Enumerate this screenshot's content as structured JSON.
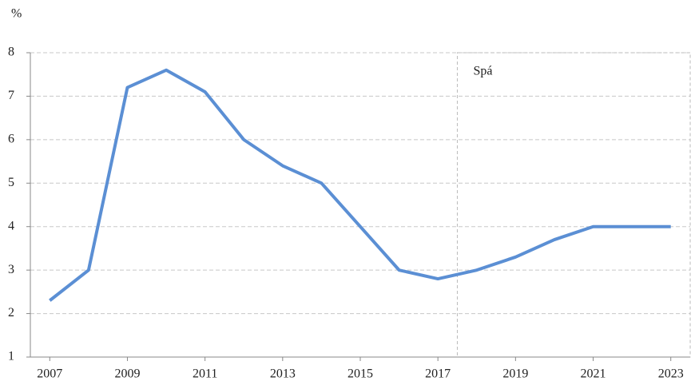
{
  "chart_data": {
    "type": "line",
    "y_label": "%",
    "x": [
      2007,
      2008,
      2009,
      2010,
      2011,
      2012,
      2013,
      2014,
      2015,
      2016,
      2017,
      2018,
      2019,
      2020,
      2021,
      2022,
      2023
    ],
    "series": [
      {
        "name": null,
        "color": "#5b8fd4",
        "values": [
          2.3,
          3.0,
          7.2,
          7.6,
          7.1,
          6.0,
          5.4,
          5.0,
          4.0,
          3.0,
          2.8,
          3.0,
          3.3,
          3.7,
          4.0,
          4.0,
          4.0
        ]
      }
    ],
    "xlim": [
      2006.5,
      2023.5
    ],
    "xticks": [
      2007,
      2009,
      2011,
      2013,
      2015,
      2017,
      2019,
      2021,
      2023
    ],
    "ylim": [
      1,
      8
    ],
    "yticks": [
      1,
      2,
      3,
      4,
      5,
      6,
      7,
      8
    ],
    "grid": true,
    "forecast": {
      "label": "Spá",
      "from": 2017.5
    }
  }
}
